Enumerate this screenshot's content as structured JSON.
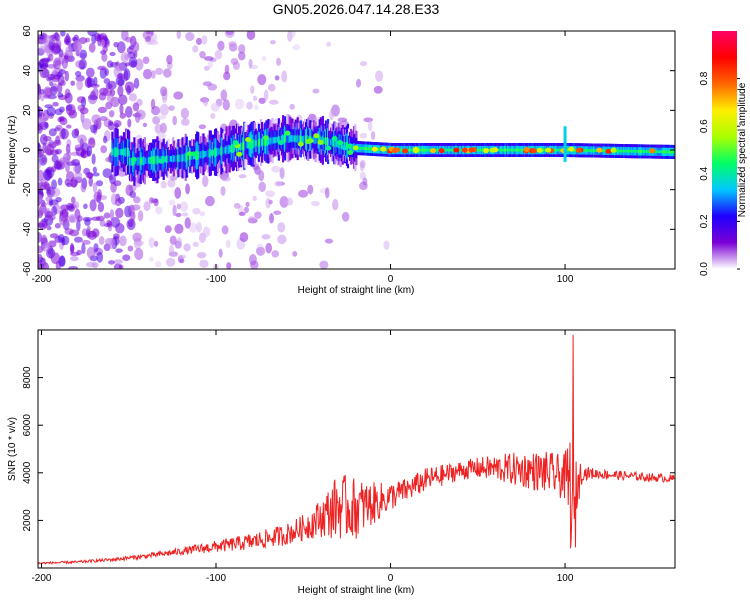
{
  "figure_title": "GN05.2026.047.14.28.E33",
  "chart_data": [
    {
      "type": "heatmap",
      "title": "GN05.2026.047.14.28.E33",
      "xlabel": "Height of straight line (km)",
      "ylabel": "Frequency (Hz)",
      "xlim": [
        -202,
        163
      ],
      "ylim": [
        -60,
        60
      ],
      "xticks": [
        -200,
        -100,
        0,
        100
      ],
      "xtick_labels": [
        "-200",
        "-100",
        "0",
        "100"
      ],
      "yticks": [
        -60,
        -40,
        -20,
        0,
        20,
        40,
        60
      ],
      "ytick_labels": [
        "-60",
        "-40",
        "-20",
        "0",
        "20",
        "40",
        "60"
      ],
      "colorbar": {
        "label": "Normalized spectral amplitude",
        "range": [
          0,
          1
        ],
        "ticks": [
          0,
          0.2,
          0.4,
          0.6,
          0.8
        ],
        "tick_labels": [
          "0.0",
          "0.2",
          "0.4",
          "0.6",
          "0.8"
        ],
        "colormap": [
          "#ffffff",
          "#7b00d6",
          "#1e00ff",
          "#00c8ff",
          "#00ff66",
          "#aaff00",
          "#ffee00",
          "#ff6600",
          "#ff0000",
          "#ff0066"
        ]
      },
      "description_points": {
        "ridge_center_hz": [
          {
            "x": -150,
            "y": -6
          },
          {
            "x": -120,
            "y": -4
          },
          {
            "x": -100,
            "y": -1
          },
          {
            "x": -80,
            "y": 3
          },
          {
            "x": -60,
            "y": 6
          },
          {
            "x": -40,
            "y": 5
          },
          {
            "x": -20,
            "y": 1
          },
          {
            "x": 0,
            "y": 0
          },
          {
            "x": 50,
            "y": 0
          },
          {
            "x": 100,
            "y": 0
          },
          {
            "x": 163,
            "y": -1
          }
        ],
        "spike_x": 100
      }
    },
    {
      "type": "line",
      "xlabel": "Height of straight line (km)",
      "ylabel": "SNR (10 * v/v)",
      "xlim": [
        -202,
        163
      ],
      "ylim": [
        0,
        10000
      ],
      "xticks": [
        -200,
        -100,
        0,
        100
      ],
      "xtick_labels": [
        "-200",
        "-100",
        "0",
        "100"
      ],
      "yticks": [
        2000,
        4000,
        6000,
        8000
      ],
      "ytick_labels": [
        "2000",
        "4000",
        "6000",
        "8000"
      ],
      "series": [
        {
          "name": "SNR",
          "color": "#ee2222",
          "x": [
            -202,
            -180,
            -160,
            -140,
            -120,
            -100,
            -80,
            -60,
            -50,
            -40,
            -30,
            -20,
            -10,
            0,
            10,
            20,
            30,
            40,
            50,
            60,
            70,
            80,
            90,
            95,
            100,
            103,
            105,
            107,
            110,
            120,
            130,
            140,
            150,
            163
          ],
          "y": [
            200,
            250,
            350,
            500,
            700,
            900,
            1100,
            1400,
            1700,
            2100,
            2600,
            2500,
            2700,
            3000,
            3300,
            3700,
            3900,
            4100,
            4200,
            4200,
            4150,
            4100,
            4000,
            3900,
            3800,
            3400,
            1500,
            3600,
            4000,
            3950,
            3900,
            3850,
            3800,
            3750
          ]
        }
      ],
      "noise_amplitude": [
        40,
        50,
        70,
        100,
        150,
        250,
        350,
        450,
        550,
        800,
        1400,
        1300,
        900,
        600,
        500,
        500,
        450,
        400,
        450,
        550,
        700,
        800,
        900,
        900,
        1000,
        2500,
        2500,
        1200,
        300,
        200,
        200,
        180,
        170,
        170
      ],
      "peaks": [
        {
          "x": 104.5,
          "y": 9800
        }
      ]
    }
  ]
}
